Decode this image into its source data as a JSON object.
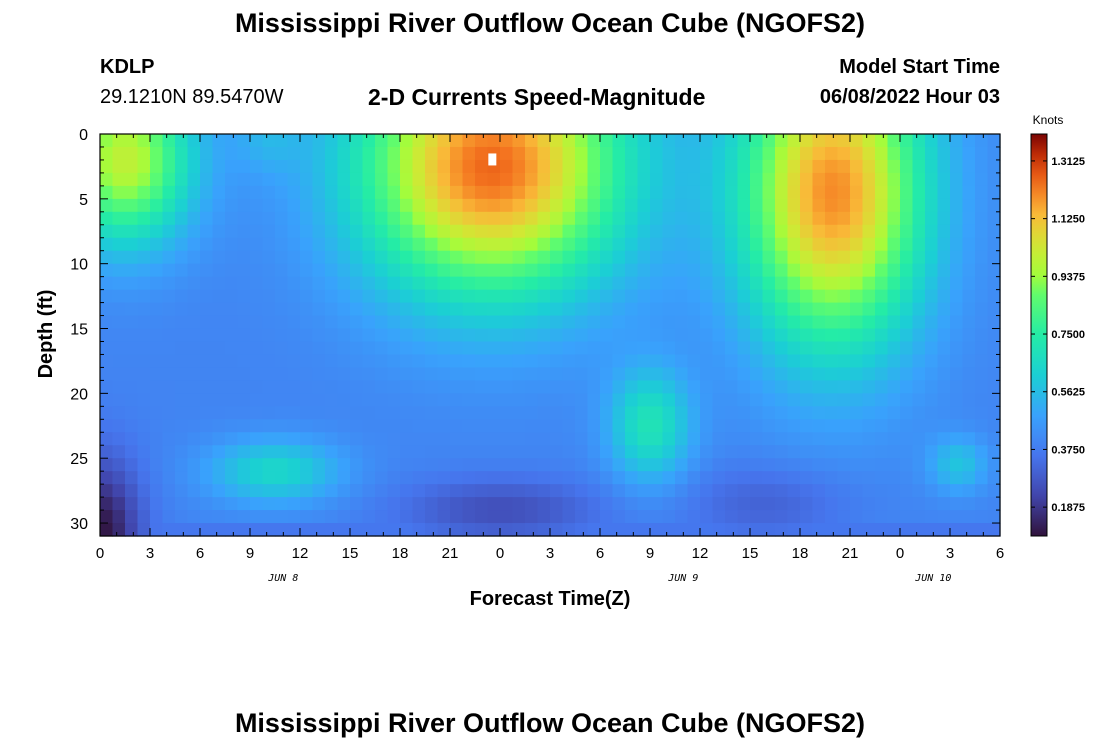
{
  "header": {
    "title": "Mississippi River Outflow Ocean Cube (NGOFS2)",
    "station": "KDLP",
    "coords": "29.1210N  89.5470W",
    "subtitle": "2-D Currents Speed-Magnitude",
    "model_start_label": "Model Start Time",
    "model_start_value": "06/08/2022 Hour 03"
  },
  "footer": {
    "title_repeat": "Mississippi River Outflow Ocean Cube (NGOFS2)"
  },
  "chart_data": {
    "type": "heatmap",
    "title": "2-D Currents Speed-Magnitude",
    "xlabel": "Forecast Time(Z)",
    "ylabel": "Depth (ft)",
    "x_tick_labels": [
      "0",
      "3",
      "6",
      "9",
      "12",
      "15",
      "18",
      "21",
      "0",
      "3",
      "6",
      "9",
      "12",
      "15",
      "18",
      "21",
      "0",
      "3",
      "6"
    ],
    "date_labels": [
      {
        "text": "JUN 8",
        "at_tick": 4
      },
      {
        "text": "JUN 9",
        "at_tick": 12
      },
      {
        "text": "JUN 10",
        "at_tick": 17
      }
    ],
    "xlim_hours": [
      0,
      54
    ],
    "ylim": [
      0,
      31
    ],
    "y_ticks": [
      0,
      5,
      10,
      15,
      20,
      25,
      30
    ],
    "y_inverted": true,
    "colorbar": {
      "unit": "Knots",
      "min": 0.0937,
      "max": 1.4,
      "tick_labels": [
        "1.3125",
        "1.1250",
        "0.9375",
        "0.7500",
        "0.5625",
        "0.3750",
        "0.1875"
      ]
    }
  }
}
